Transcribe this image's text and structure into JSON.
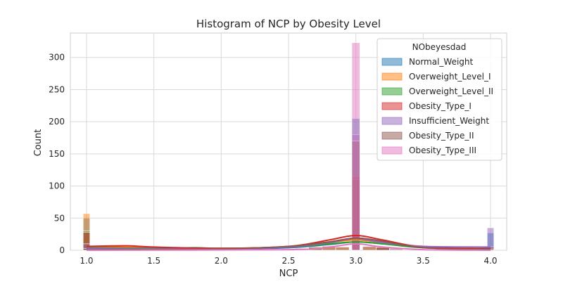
{
  "chart_data": {
    "type": "bar",
    "title": "Histogram of NCP by Obesity Level",
    "xlabel": "NCP",
    "ylabel": "Count",
    "xlim": [
      0.88,
      4.12
    ],
    "ylim": [
      0,
      338
    ],
    "x_ticks": [
      1.0,
      1.5,
      2.0,
      2.5,
      3.0,
      3.5,
      4.0
    ],
    "x_tick_labels": [
      "1.0",
      "1.5",
      "2.0",
      "2.5",
      "3.0",
      "3.5",
      "4.0"
    ],
    "y_ticks": [
      0,
      50,
      100,
      150,
      200,
      250,
      300
    ],
    "y_tick_labels": [
      "0",
      "50",
      "100",
      "150",
      "200",
      "250",
      "300"
    ],
    "grid": true,
    "legend": {
      "title": "NObeyesdad",
      "placement": "top-right"
    },
    "stat": "histogram with kde overlay",
    "series": [
      {
        "name": "Normal_Weight",
        "color": "#1f77b4",
        "bars": [
          [
            1.0,
            50
          ],
          [
            3.0,
            205
          ],
          [
            4.0,
            27
          ]
        ],
        "kde": [
          [
            1.0,
            5
          ],
          [
            1.5,
            3
          ],
          [
            2.0,
            2
          ],
          [
            2.5,
            4
          ],
          [
            2.8,
            9
          ],
          [
            3.0,
            13
          ],
          [
            3.2,
            10
          ],
          [
            3.5,
            5
          ],
          [
            4.0,
            4
          ]
        ]
      },
      {
        "name": "Overweight_Level_I",
        "color": "#ff7f0e",
        "bars": [
          [
            1.0,
            57
          ],
          [
            2.7,
            6
          ],
          [
            2.8,
            7
          ],
          [
            2.9,
            5
          ],
          [
            3.0,
            110
          ],
          [
            3.1,
            5
          ],
          [
            3.2,
            4
          ],
          [
            4.0,
            3
          ]
        ],
        "kde": [
          [
            1.0,
            6
          ],
          [
            1.5,
            4
          ],
          [
            2.0,
            3
          ],
          [
            2.5,
            5
          ],
          [
            2.8,
            12
          ],
          [
            3.0,
            16
          ],
          [
            3.2,
            12
          ],
          [
            3.5,
            6
          ],
          [
            4.0,
            2
          ]
        ]
      },
      {
        "name": "Overweight_Level_II",
        "color": "#2ca02c",
        "bars": [
          [
            1.0,
            30
          ],
          [
            1.8,
            5
          ],
          [
            2.7,
            4
          ],
          [
            3.0,
            110
          ],
          [
            3.2,
            4
          ],
          [
            4.0,
            6
          ]
        ],
        "kde": [
          [
            1.0,
            4
          ],
          [
            1.5,
            3
          ],
          [
            1.8,
            4
          ],
          [
            2.0,
            3
          ],
          [
            2.5,
            5
          ],
          [
            2.8,
            10
          ],
          [
            3.0,
            13
          ],
          [
            3.2,
            10
          ],
          [
            3.5,
            4
          ],
          [
            4.0,
            2
          ]
        ]
      },
      {
        "name": "Obesity_Type_I",
        "color": "#d62728",
        "bars": [
          [
            1.0,
            28
          ],
          [
            3.0,
            115
          ],
          [
            3.2,
            4
          ],
          [
            4.0,
            5
          ]
        ],
        "kde": [
          [
            1.0,
            6
          ],
          [
            1.3,
            7
          ],
          [
            1.5,
            5
          ],
          [
            2.0,
            3
          ],
          [
            2.5,
            6
          ],
          [
            2.8,
            16
          ],
          [
            3.0,
            23
          ],
          [
            3.2,
            16
          ],
          [
            3.5,
            5
          ],
          [
            4.0,
            2
          ]
        ]
      },
      {
        "name": "Insufficient_Weight",
        "color": "#9467bd",
        "bars": [
          [
            1.0,
            10
          ],
          [
            3.0,
            180
          ],
          [
            4.0,
            35
          ]
        ],
        "kde": [
          [
            1.0,
            3
          ],
          [
            1.5,
            2
          ],
          [
            2.0,
            2
          ],
          [
            2.5,
            5
          ],
          [
            2.8,
            12
          ],
          [
            3.0,
            18
          ],
          [
            3.2,
            12
          ],
          [
            3.5,
            6
          ],
          [
            4.0,
            5
          ]
        ]
      },
      {
        "name": "Obesity_Type_II",
        "color": "#8c564b",
        "bars": [
          [
            1.0,
            3
          ],
          [
            2.6,
            3
          ],
          [
            2.7,
            5
          ],
          [
            2.8,
            6
          ],
          [
            2.9,
            5
          ],
          [
            3.0,
            170
          ],
          [
            3.1,
            6
          ],
          [
            3.2,
            5
          ],
          [
            3.3,
            3
          ],
          [
            4.0,
            2
          ]
        ],
        "kde": [
          [
            1.0,
            1
          ],
          [
            1.5,
            1
          ],
          [
            2.0,
            2
          ],
          [
            2.5,
            6
          ],
          [
            2.8,
            13
          ],
          [
            3.0,
            19
          ],
          [
            3.2,
            14
          ],
          [
            3.5,
            4
          ],
          [
            4.0,
            1
          ]
        ]
      },
      {
        "name": "Obesity_Type_III",
        "color": "#e377c2",
        "bars": [
          [
            1.0,
            0
          ],
          [
            3.0,
            323
          ],
          [
            4.0,
            0
          ]
        ],
        "kde": [
          [
            1.0,
            0
          ],
          [
            2.5,
            1
          ],
          [
            2.8,
            5
          ],
          [
            3.0,
            10
          ],
          [
            3.2,
            5
          ],
          [
            3.5,
            1
          ],
          [
            4.0,
            0
          ]
        ]
      }
    ]
  }
}
